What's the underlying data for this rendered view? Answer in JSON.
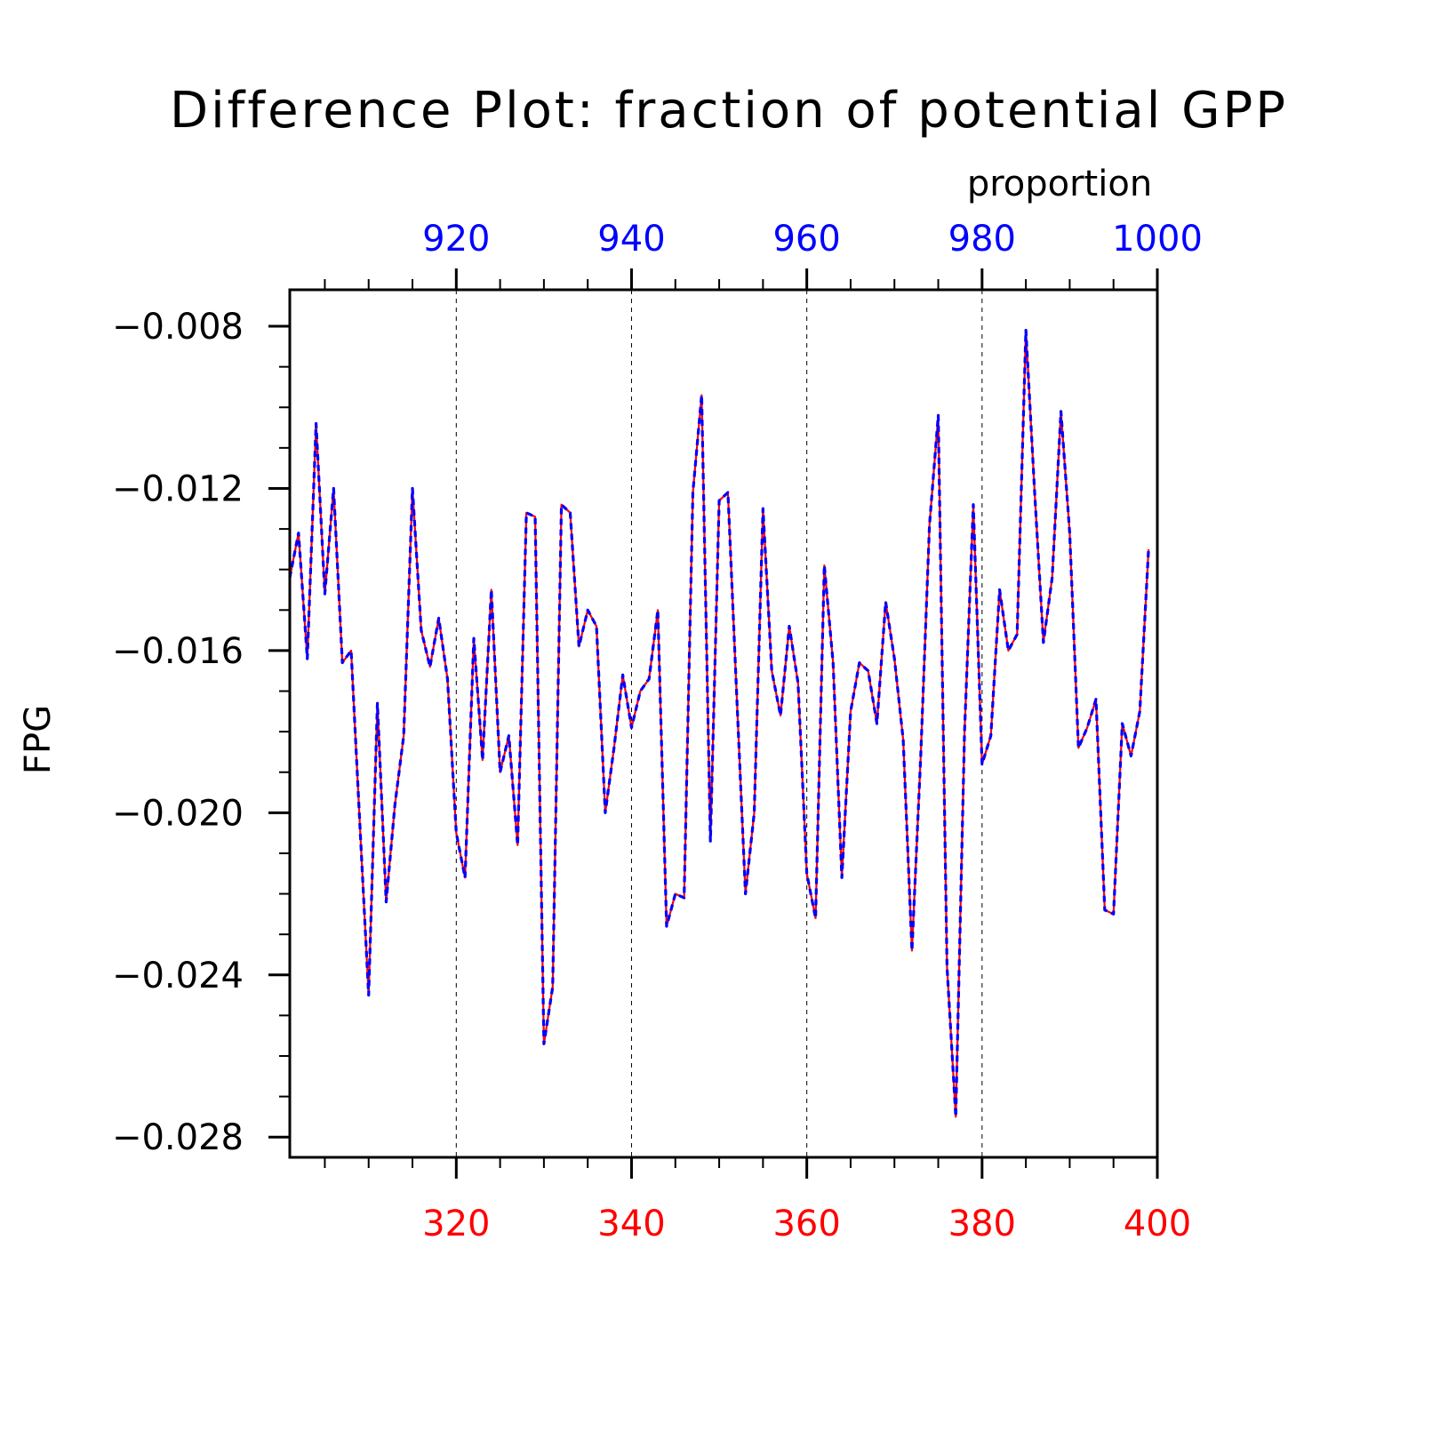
{
  "chart_data": {
    "type": "line",
    "title": "Difference Plot: fraction of potential GPP",
    "ylabel": "FPG",
    "top_axis_label": "proportion",
    "x_bottom": {
      "range": [
        301,
        400
      ],
      "tick_values": [
        320,
        340,
        360,
        380,
        400
      ],
      "tick_labels": [
        "320",
        "340",
        "360",
        "380",
        "400"
      ],
      "color": "#ff0000"
    },
    "x_top": {
      "range": [
        901,
        1000
      ],
      "tick_values": [
        920,
        940,
        960,
        980,
        1000
      ],
      "tick_labels": [
        "920",
        "940",
        "960",
        "980",
        "1000"
      ],
      "color": "#0000ff"
    },
    "y": {
      "range": [
        -0.0285,
        -0.0071
      ],
      "tick_values": [
        -0.028,
        -0.024,
        -0.02,
        -0.016,
        -0.012,
        -0.008
      ],
      "tick_labels": [
        "−0.028",
        "−0.024",
        "−0.020",
        "−0.016",
        "−0.012",
        "−0.008"
      ]
    },
    "vertical_gridlines_at": [
      320,
      340,
      360,
      380
    ],
    "series": [
      {
        "color": "#ff0000",
        "style": "solid",
        "x_start": 301,
        "values": [
          -0.0142,
          -0.0131,
          -0.0162,
          -0.0104,
          -0.0146,
          -0.012,
          -0.0163,
          -0.016,
          -0.0203,
          -0.0245,
          -0.0173,
          -0.0222,
          -0.0198,
          -0.0181,
          -0.012,
          -0.0155,
          -0.0164,
          -0.0152,
          -0.0167,
          -0.0205,
          -0.0216,
          -0.0157,
          -0.0187,
          -0.0145,
          -0.019,
          -0.0181,
          -0.0208,
          -0.0126,
          -0.0127,
          -0.0257,
          -0.0243,
          -0.0124,
          -0.0126,
          -0.0159,
          -0.015,
          -0.0154,
          -0.02,
          -0.0184,
          -0.0166,
          -0.0179,
          -0.017,
          -0.0167,
          -0.015,
          -0.0228,
          -0.022,
          -0.0221,
          -0.0121,
          -0.0097,
          -0.0207,
          -0.0123,
          -0.0121,
          -0.0171,
          -0.022,
          -0.02,
          -0.0125,
          -0.0165,
          -0.0176,
          -0.0154,
          -0.0168,
          -0.0215,
          -0.0226,
          -0.0139,
          -0.0163,
          -0.0216,
          -0.0175,
          -0.0163,
          -0.0165,
          -0.0178,
          -0.0148,
          -0.0162,
          -0.0182,
          -0.0234,
          -0.0186,
          -0.0129,
          -0.0102,
          -0.0238,
          -0.0275,
          -0.018,
          -0.0124,
          -0.0188,
          -0.0181,
          -0.0145,
          -0.016,
          -0.0156,
          -0.0081,
          -0.0121,
          -0.0158,
          -0.0142,
          -0.0101,
          -0.0131,
          -0.0184,
          -0.0179,
          -0.0172,
          -0.0224,
          -0.0225,
          -0.0178,
          -0.0186,
          -0.0175,
          -0.0135
        ]
      },
      {
        "color": "#0000ff",
        "style": "dashed",
        "x_start": 901,
        "values": [
          -0.0142,
          -0.0131,
          -0.0162,
          -0.0104,
          -0.0146,
          -0.012,
          -0.0163,
          -0.016,
          -0.0203,
          -0.0245,
          -0.0173,
          -0.0222,
          -0.0198,
          -0.0181,
          -0.012,
          -0.0155,
          -0.0164,
          -0.0152,
          -0.0167,
          -0.0205,
          -0.0216,
          -0.0157,
          -0.0187,
          -0.0145,
          -0.019,
          -0.0181,
          -0.0208,
          -0.0126,
          -0.0127,
          -0.0257,
          -0.0243,
          -0.0124,
          -0.0126,
          -0.0159,
          -0.015,
          -0.0154,
          -0.02,
          -0.0184,
          -0.0166,
          -0.0179,
          -0.017,
          -0.0167,
          -0.015,
          -0.0228,
          -0.022,
          -0.0221,
          -0.0121,
          -0.0097,
          -0.0207,
          -0.0123,
          -0.0121,
          -0.0171,
          -0.022,
          -0.02,
          -0.0125,
          -0.0165,
          -0.0176,
          -0.0154,
          -0.0168,
          -0.0215,
          -0.0226,
          -0.0139,
          -0.0163,
          -0.0216,
          -0.0175,
          -0.0163,
          -0.0165,
          -0.0178,
          -0.0148,
          -0.0162,
          -0.0182,
          -0.0234,
          -0.0186,
          -0.0129,
          -0.0102,
          -0.0238,
          -0.0275,
          -0.018,
          -0.0124,
          -0.0188,
          -0.0181,
          -0.0145,
          -0.016,
          -0.0156,
          -0.0081,
          -0.0121,
          -0.0158,
          -0.0142,
          -0.0101,
          -0.0131,
          -0.0184,
          -0.0179,
          -0.0172,
          -0.0224,
          -0.0225,
          -0.0178,
          -0.0186,
          -0.0175,
          -0.0135
        ]
      }
    ]
  }
}
